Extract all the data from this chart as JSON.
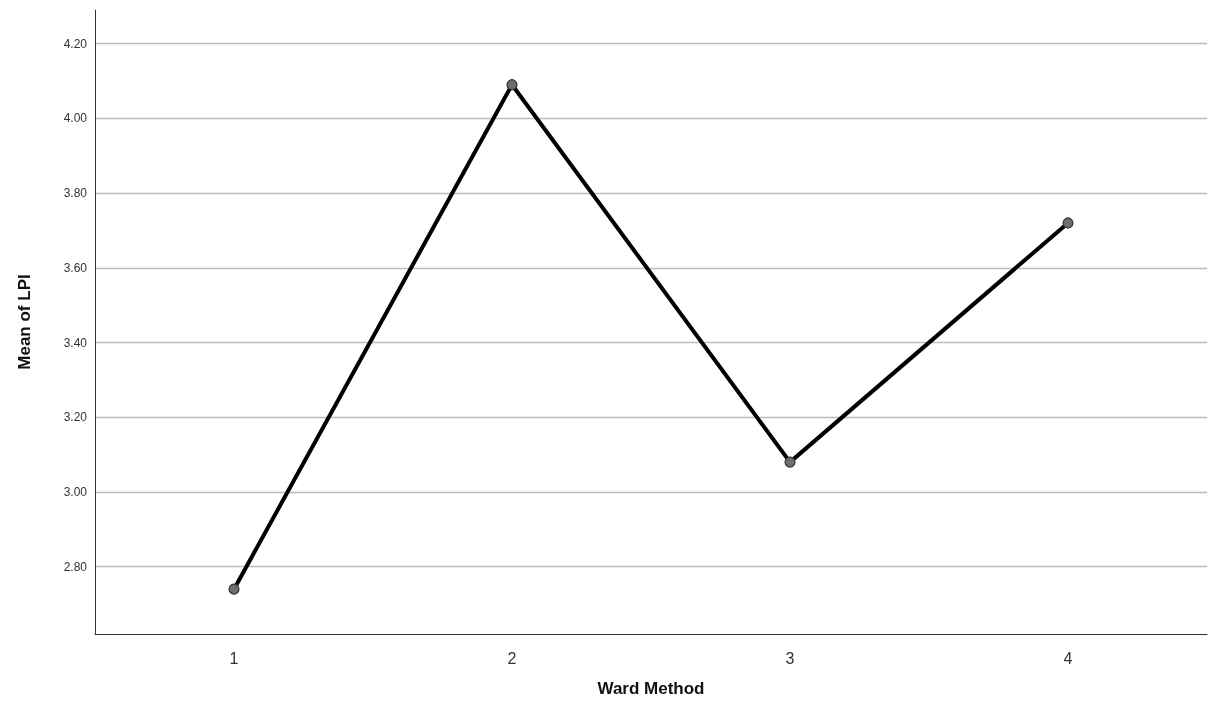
{
  "chart_data": {
    "type": "line",
    "xlabel": "Ward Method",
    "ylabel": "Mean of LPI",
    "categories": [
      "1",
      "2",
      "3",
      "4"
    ],
    "series": [
      {
        "color": "#000000",
        "values": [
          2.74,
          4.09,
          3.08,
          3.72
        ]
      }
    ],
    "ylim": [
      2.62,
      4.29
    ],
    "yticks": [
      {
        "value": 2.8,
        "label": "2.80"
      },
      {
        "value": 3.0,
        "label": "3.00"
      },
      {
        "value": 3.2,
        "label": "3.20"
      },
      {
        "value": 3.4,
        "label": "3.40"
      },
      {
        "value": 3.6,
        "label": "3.60"
      },
      {
        "value": 3.8,
        "label": "3.80"
      },
      {
        "value": 4.0,
        "label": "4.00"
      },
      {
        "value": 4.2,
        "label": "4.20"
      }
    ],
    "grid": "y",
    "marker": "circle",
    "line_style": "solid"
  }
}
